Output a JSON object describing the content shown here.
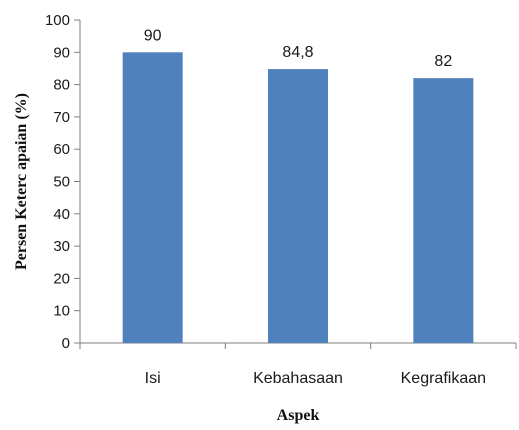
{
  "chart_data": {
    "type": "bar",
    "categories": [
      "Isi",
      "Kebahasaan",
      "Kegrafikaan"
    ],
    "values": [
      90,
      84.8,
      82
    ],
    "value_labels": [
      "90",
      "84,8",
      "82"
    ],
    "xlabel": "Aspek",
    "ylabel": "Persen Keterc apaian (%)",
    "ylim": [
      0,
      100
    ],
    "yticks": [
      0,
      10,
      20,
      30,
      40,
      50,
      60,
      70,
      80,
      90,
      100
    ],
    "ytick_labels": [
      "0",
      "10",
      "20",
      "30",
      "40",
      "50",
      "60",
      "70",
      "80",
      "90",
      "100"
    ],
    "grid": false,
    "legend": "none",
    "bar_color": "#4f81bd"
  }
}
